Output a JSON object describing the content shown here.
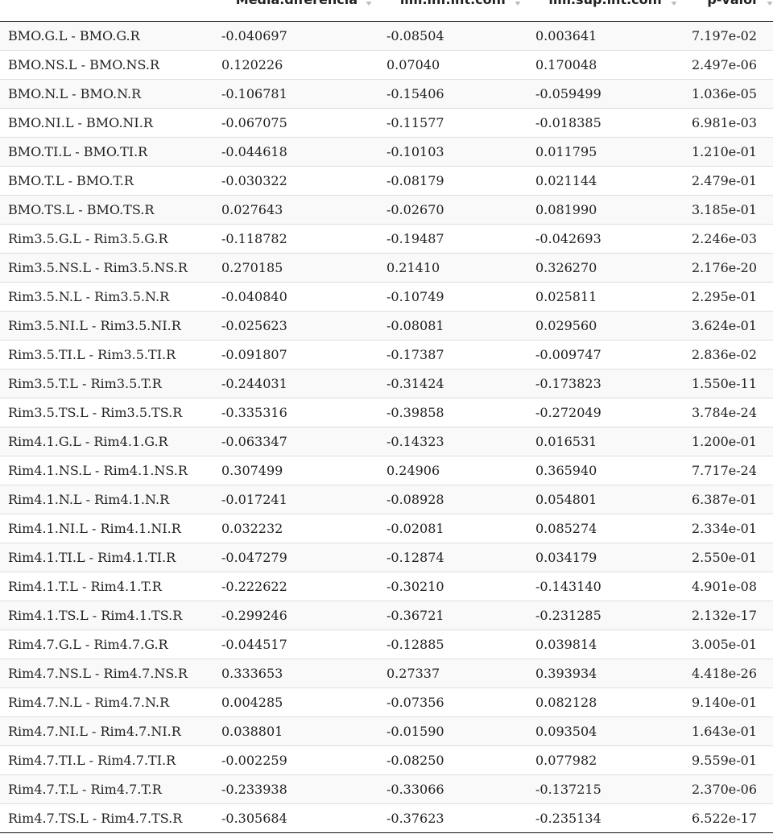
{
  "table": {
    "columns": [
      {
        "label": ""
      },
      {
        "label": "Media.diferencia"
      },
      {
        "label": "lim.inf.int.conf"
      },
      {
        "label": "lim.sup.int.conf"
      },
      {
        "label": "p-valor"
      }
    ],
    "rows": [
      [
        "BMO.G.L - BMO.G.R",
        "-0.040697",
        "-0.08504",
        "0.003641",
        "7.197e-02"
      ],
      [
        "BMO.NS.L - BMO.NS.R",
        "0.120226",
        "0.07040",
        "0.170048",
        "2.497e-06"
      ],
      [
        "BMO.N.L - BMO.N.R",
        "-0.106781",
        "-0.15406",
        "-0.059499",
        "1.036e-05"
      ],
      [
        "BMO.NI.L - BMO.NI.R",
        "-0.067075",
        "-0.11577",
        "-0.018385",
        "6.981e-03"
      ],
      [
        "BMO.TI.L - BMO.TI.R",
        "-0.044618",
        "-0.10103",
        "0.011795",
        "1.210e-01"
      ],
      [
        "BMO.T.L - BMO.T.R",
        "-0.030322",
        "-0.08179",
        "0.021144",
        "2.479e-01"
      ],
      [
        "BMO.TS.L - BMO.TS.R",
        "0.027643",
        "-0.02670",
        "0.081990",
        "3.185e-01"
      ],
      [
        "Rim3.5.G.L - Rim3.5.G.R",
        "-0.118782",
        "-0.19487",
        "-0.042693",
        "2.246e-03"
      ],
      [
        "Rim3.5.NS.L - Rim3.5.NS.R",
        "0.270185",
        "0.21410",
        "0.326270",
        "2.176e-20"
      ],
      [
        "Rim3.5.N.L - Rim3.5.N.R",
        "-0.040840",
        "-0.10749",
        "0.025811",
        "2.295e-01"
      ],
      [
        "Rim3.5.NI.L - Rim3.5.NI.R",
        "-0.025623",
        "-0.08081",
        "0.029560",
        "3.624e-01"
      ],
      [
        "Rim3.5.TI.L - Rim3.5.TI.R",
        "-0.091807",
        "-0.17387",
        "-0.009747",
        "2.836e-02"
      ],
      [
        "Rim3.5.T.L - Rim3.5.T.R",
        "-0.244031",
        "-0.31424",
        "-0.173823",
        "1.550e-11"
      ],
      [
        "Rim3.5.TS.L - Rim3.5.TS.R",
        "-0.335316",
        "-0.39858",
        "-0.272049",
        "3.784e-24"
      ],
      [
        "Rim4.1.G.L - Rim4.1.G.R",
        "-0.063347",
        "-0.14323",
        "0.016531",
        "1.200e-01"
      ],
      [
        "Rim4.1.NS.L - Rim4.1.NS.R",
        "0.307499",
        "0.24906",
        "0.365940",
        "7.717e-24"
      ],
      [
        "Rim4.1.N.L - Rim4.1.N.R",
        "-0.017241",
        "-0.08928",
        "0.054801",
        "6.387e-01"
      ],
      [
        "Rim4.1.NI.L - Rim4.1.NI.R",
        "0.032232",
        "-0.02081",
        "0.085274",
        "2.334e-01"
      ],
      [
        "Rim4.1.TI.L - Rim4.1.TI.R",
        "-0.047279",
        "-0.12874",
        "0.034179",
        "2.550e-01"
      ],
      [
        "Rim4.1.T.L - Rim4.1.T.R",
        "-0.222622",
        "-0.30210",
        "-0.143140",
        "4.901e-08"
      ],
      [
        "Rim4.1.TS.L - Rim4.1.TS.R",
        "-0.299246",
        "-0.36721",
        "-0.231285",
        "2.132e-17"
      ],
      [
        "Rim4.7.G.L - Rim4.7.G.R",
        "-0.044517",
        "-0.12885",
        "0.039814",
        "3.005e-01"
      ],
      [
        "Rim4.7.NS.L - Rim4.7.NS.R",
        "0.333653",
        "0.27337",
        "0.393934",
        "4.418e-26"
      ],
      [
        "Rim4.7.N.L - Rim4.7.N.R",
        "0.004285",
        "-0.07356",
        "0.082128",
        "9.140e-01"
      ],
      [
        "Rim4.7.NI.L - Rim4.7.NI.R",
        "0.038801",
        "-0.01590",
        "0.093504",
        "1.643e-01"
      ],
      [
        "Rim4.7.TI.L - Rim4.7.TI.R",
        "-0.002259",
        "-0.08250",
        "0.077982",
        "9.559e-01"
      ],
      [
        "Rim4.7.T.L - Rim4.7.T.R",
        "-0.233938",
        "-0.33066",
        "-0.137215",
        "2.370e-06"
      ],
      [
        "Rim4.7.TS.L - Rim4.7.TS.R",
        "-0.305684",
        "-0.37623",
        "-0.235134",
        "6.522e-17"
      ]
    ]
  },
  "icons": {
    "sort": "sort-both-icon"
  },
  "colors": {
    "text": "#222222",
    "stripe": "#f9f9f9",
    "row_border": "#dddddd",
    "sort_icon": "#bbbbbb"
  }
}
